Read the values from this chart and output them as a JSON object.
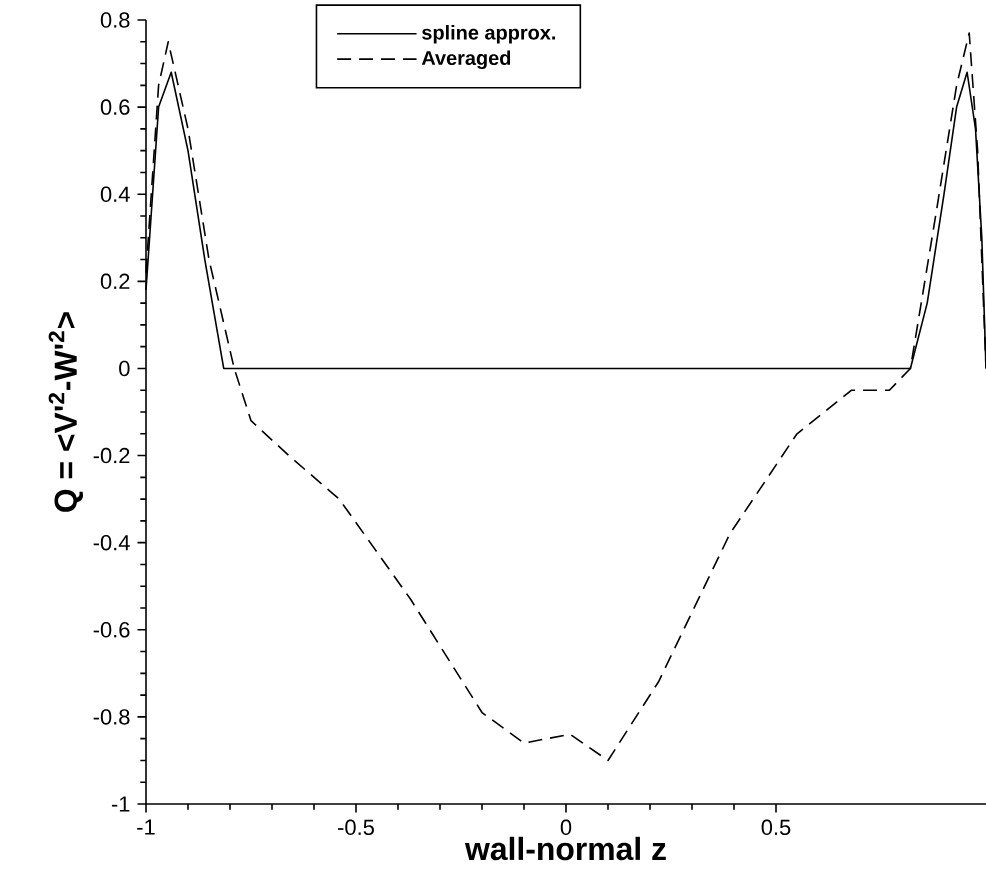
{
  "chart_data": {
    "type": "line",
    "xlabel": "wall-normal z",
    "ylabel": "Q = <V'$^{2}$-W'$^{2}$>",
    "xlim": [
      -1,
      1
    ],
    "ylim": [
      -1,
      0.8
    ],
    "xticks": [
      -1,
      -0.5,
      0,
      0.5
    ],
    "yticks": [
      -1,
      -0.8,
      -0.6,
      -0.4,
      -0.2,
      0,
      0.2,
      0.4,
      0.6,
      0.8
    ],
    "legend": "top",
    "grid": false,
    "series": [
      {
        "name": "spline approx.",
        "color": "#000000",
        "line_style": "solid",
        "x": [
          -1,
          -0.97,
          -0.94,
          -0.9,
          -0.86,
          -0.815,
          0.82,
          0.86,
          0.9,
          0.93,
          0.955,
          0.975,
          0.99,
          1.0
        ],
        "values": [
          0.18,
          0.6,
          0.68,
          0.5,
          0.25,
          0,
          0,
          0.15,
          0.4,
          0.6,
          0.68,
          0.55,
          0.3,
          0
        ]
      },
      {
        "name": "Averaged",
        "color": "#000000",
        "line_style": "dashed",
        "x": [
          -1,
          -0.97,
          -0.947,
          -0.9,
          -0.85,
          -0.79,
          -0.75,
          -0.66,
          -0.54,
          -0.37,
          -0.2,
          -0.1,
          0.01,
          0.1,
          0.22,
          0.39,
          0.55,
          0.68,
          0.77,
          0.82,
          0.88,
          0.93,
          0.96,
          0.98,
          1.0
        ],
        "values": [
          0.22,
          0.65,
          0.75,
          0.55,
          0.25,
          0,
          -0.12,
          -0.2,
          -0.3,
          -0.53,
          -0.79,
          -0.86,
          -0.84,
          -0.9,
          -0.72,
          -0.38,
          -0.15,
          -0.05,
          -0.05,
          0,
          0.35,
          0.65,
          0.77,
          0.5,
          0
        ]
      }
    ]
  }
}
